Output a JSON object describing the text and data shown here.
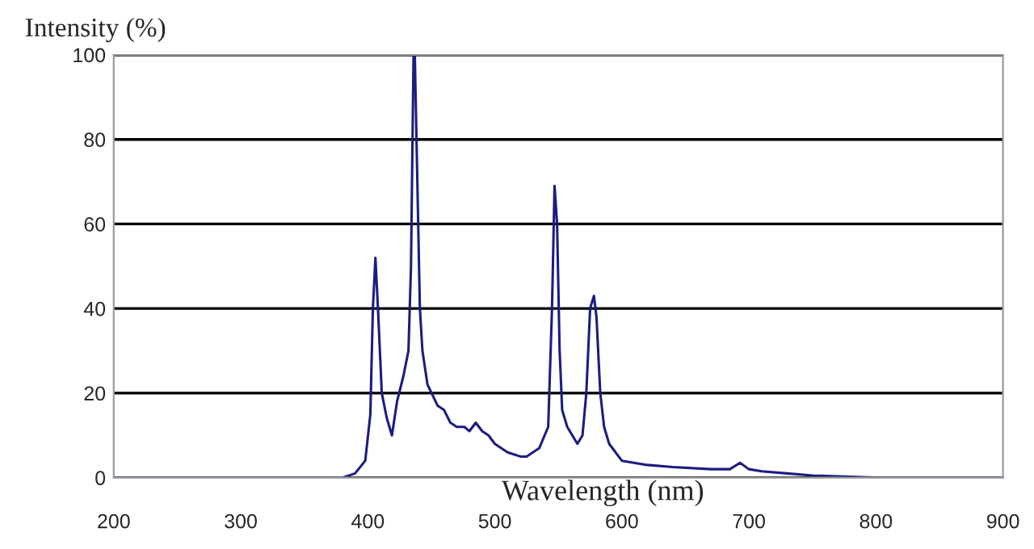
{
  "chart_data": {
    "type": "line",
    "ylabel": "Intensity (%)",
    "xlabel": "Wavelength (nm)",
    "xlim": [
      200,
      900
    ],
    "xticks": [
      200,
      300,
      400,
      500,
      600,
      700,
      800,
      900
    ],
    "ylim": [
      0,
      100
    ],
    "yticks": [
      0,
      20,
      40,
      60,
      80,
      100
    ],
    "grid": "y",
    "legend": false,
    "marker": "none",
    "line_style": "solid",
    "series": [
      {
        "color": "#1c1c80",
        "x": [
          200,
          380,
          390,
          398,
          402,
          404,
          406,
          408,
          411,
          415,
          419,
          423,
          428,
          432,
          434,
          436,
          437,
          439,
          441,
          443,
          447,
          455,
          460,
          465,
          470,
          476,
          480,
          485,
          490,
          495,
          500,
          510,
          520,
          525,
          535,
          542,
          545,
          547,
          549,
          551,
          553,
          557,
          561,
          565,
          569,
          572,
          575,
          578,
          580,
          583,
          586,
          590,
          600,
          620,
          640,
          670,
          685,
          693,
          700,
          710,
          730,
          750,
          780,
          800,
          900
        ],
        "values": [
          0,
          0,
          1,
          4,
          15,
          40,
          52,
          40,
          20,
          14,
          10,
          18,
          24,
          30,
          50,
          100,
          100,
          70,
          40,
          30,
          22,
          17,
          16,
          13,
          12,
          12,
          11,
          13,
          11,
          10,
          8,
          6,
          5,
          5,
          7,
          12,
          40,
          69,
          60,
          30,
          16,
          12,
          10,
          8,
          10,
          20,
          40,
          43,
          38,
          20,
          12,
          8,
          4,
          3,
          2.5,
          2,
          2,
          3.5,
          2,
          1.5,
          1,
          0.5,
          0.2,
          0,
          0
        ]
      }
    ]
  }
}
